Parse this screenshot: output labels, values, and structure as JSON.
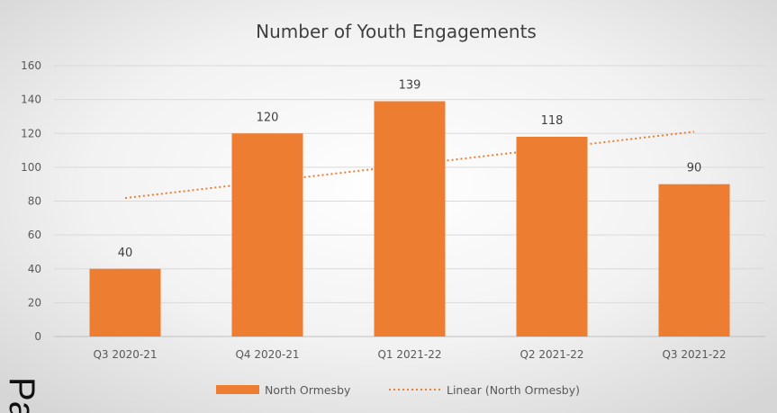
{
  "chart_data": {
    "type": "bar",
    "title": "Number of Youth Engagements",
    "categories": [
      "Q3 2020-21",
      "Q4 2020-21",
      "Q1 2021-22",
      "Q2 2021-22",
      "Q3 2021-22"
    ],
    "series": [
      {
        "name": "North Ormesby",
        "values": [
          40,
          120,
          139,
          118,
          90
        ],
        "color": "#ED7D31"
      }
    ],
    "trendline": {
      "name": "Linear (North Ormesby)",
      "type": "linear",
      "style": "dotted",
      "color": "#ED7D31"
    },
    "y_ticks": [
      0,
      20,
      40,
      60,
      80,
      100,
      120,
      140,
      160
    ],
    "ylim": [
      0,
      160
    ],
    "xlabel": "",
    "ylabel": "",
    "grid": true,
    "legend_position": "bottom",
    "data_labels": true,
    "background": "radial-gradient grey"
  },
  "page_fragment_text": "Pa"
}
